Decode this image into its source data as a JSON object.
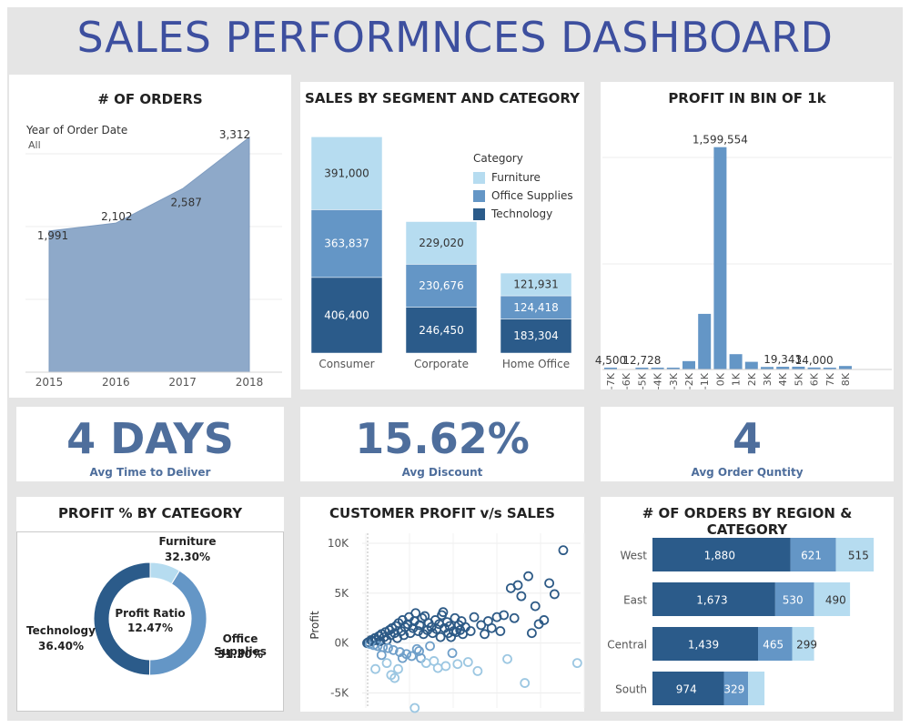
{
  "dashboard_title": "SALES PERFORMNCES DASHBOARD",
  "colors": {
    "furniture": "#b6dcf0",
    "office_supplies": "#6496c6",
    "technology": "#2b5b8a",
    "area": "#8ea9c9",
    "kpi": "#4e6e9c",
    "title": "#3d4f9f"
  },
  "orders": {
    "title": "# OF ORDERS",
    "filter_label": "Year of Order Date",
    "filter_value": "All",
    "chart_data": {
      "type": "area",
      "categories": [
        "2015",
        "2016",
        "2017",
        "2018"
      ],
      "values": [
        1991,
        2102,
        2587,
        3312
      ],
      "value_labels": [
        "1,991",
        "2,102",
        "2,587",
        "3,312"
      ],
      "title": "# OF ORDERS",
      "ylim": [
        0,
        3400
      ]
    }
  },
  "segment": {
    "title": "SALES BY SEGMENT AND CATEGORY",
    "legend_title": "Category",
    "legend": [
      "Furniture",
      "Office Supplies",
      "Technology"
    ],
    "chart_data": {
      "type": "bar",
      "stacked": true,
      "categories": [
        "Consumer",
        "Corporate",
        "Home Office"
      ],
      "series": [
        {
          "name": "Technology",
          "values": [
            406400,
            246450,
            183304
          ],
          "labels": [
            "406,400",
            "246,450",
            "183,304"
          ]
        },
        {
          "name": "Office Supplies",
          "values": [
            363837,
            230676,
            124418
          ],
          "labels": [
            "363,837",
            "230,676",
            "124,418"
          ]
        },
        {
          "name": "Furniture",
          "values": [
            391000,
            229020,
            121931
          ],
          "labels": [
            "391,000",
            "229,020",
            "121,931"
          ]
        }
      ],
      "ylim": [
        0,
        1300000
      ]
    }
  },
  "profit_bins": {
    "title": "PROFIT IN BIN OF 1k",
    "chart_data": {
      "type": "bar",
      "categories": [
        "-7K",
        "-6K",
        "-5K",
        "-4K",
        "-3K",
        "-2K",
        "-1K",
        "0K",
        "1K",
        "2K",
        "3K",
        "4K",
        "5K",
        "6K",
        "7K",
        "8K"
      ],
      "values": [
        4500,
        0,
        12728,
        3000,
        4000,
        60000,
        400000,
        1599554,
        110000,
        55000,
        18000,
        19343,
        20000,
        14000,
        2000,
        25000
      ],
      "data_labels": [
        {
          "category": "-7K",
          "text": "4,500"
        },
        {
          "category": "-5K",
          "text": "12,728"
        },
        {
          "category": "0K",
          "text": "1,599,554"
        },
        {
          "category": "4K",
          "text": "19,343"
        },
        {
          "category": "6K",
          "text": "14,000"
        }
      ],
      "ylim": [
        0,
        1650000
      ]
    }
  },
  "kpis": [
    {
      "value": "4 DAYS",
      "label": "Avg Time to Deliver"
    },
    {
      "value": "15.62%",
      "label": "Avg Discount"
    },
    {
      "value": "4",
      "label": "Avg Order Quntity"
    }
  ],
  "profit_category": {
    "title": "PROFIT % BY CATEGORY",
    "center_title": "Profit Ratio",
    "center_value": "12.47%",
    "chart_data": {
      "type": "pie",
      "donut": true,
      "slices": [
        {
          "name": "Furniture",
          "value": 32.3,
          "label": "32.30%"
        },
        {
          "name": "Office Supplies",
          "value": 31.3,
          "label": "31.30%"
        },
        {
          "name": "Technology",
          "value": 36.4,
          "label": "36.40%"
        }
      ]
    }
  },
  "customer": {
    "title": "CUSTOMER PROFIT v/s SALES",
    "ylabel": "Profit",
    "y_ticks": [
      "10K",
      "5K",
      "0K",
      "-5K"
    ],
    "chart_data": {
      "type": "scatter",
      "ylabel": "Profit",
      "ylim": [
        -6500,
        11000
      ],
      "xlim": [
        0,
        25000
      ],
      "points": [
        [
          150,
          0
        ],
        [
          300,
          100
        ],
        [
          450,
          -80
        ],
        [
          600,
          300
        ],
        [
          750,
          200
        ],
        [
          900,
          -200
        ],
        [
          1050,
          500
        ],
        [
          1200,
          300
        ],
        [
          1350,
          -300
        ],
        [
          1500,
          700
        ],
        [
          1650,
          200
        ],
        [
          1800,
          900
        ],
        [
          1950,
          -400
        ],
        [
          2100,
          600
        ],
        [
          2250,
          1100
        ],
        [
          2400,
          300
        ],
        [
          2550,
          -500
        ],
        [
          2700,
          1300
        ],
        [
          2850,
          800
        ],
        [
          3000,
          1500
        ],
        [
          3150,
          -700
        ],
        [
          3300,
          1000
        ],
        [
          3450,
          1700
        ],
        [
          3600,
          500
        ],
        [
          3750,
          2000
        ],
        [
          3900,
          -900
        ],
        [
          4050,
          1200
        ],
        [
          4200,
          2300
        ],
        [
          4350,
          800
        ],
        [
          4500,
          1600
        ],
        [
          4650,
          -1100
        ],
        [
          4800,
          1900
        ],
        [
          4950,
          2600
        ],
        [
          5100,
          1000
        ],
        [
          5250,
          -1300
        ],
        [
          5400,
          1500
        ],
        [
          5550,
          2200
        ],
        [
          5700,
          3000
        ],
        [
          5850,
          -600
        ],
        [
          6000,
          1200
        ],
        [
          6150,
          1800
        ],
        [
          6300,
          -1500
        ],
        [
          6450,
          2500
        ],
        [
          6600,
          900
        ],
        [
          6750,
          2700
        ],
        [
          6900,
          -2000
        ],
        [
          7050,
          1300
        ],
        [
          7200,
          2000
        ],
        [
          7350,
          -300
        ],
        [
          7500,
          1600
        ],
        [
          7650,
          1000
        ],
        [
          7800,
          -1800
        ],
        [
          7950,
          2300
        ],
        [
          8100,
          1400
        ],
        [
          8250,
          -2500
        ],
        [
          8400,
          1900
        ],
        [
          8550,
          600
        ],
        [
          8700,
          2800
        ],
        [
          8850,
          3100
        ],
        [
          9000,
          1500
        ],
        [
          9150,
          -2300
        ],
        [
          9300,
          2100
        ],
        [
          9450,
          1000
        ],
        [
          9600,
          1700
        ],
        [
          9750,
          600
        ],
        [
          9900,
          -1000
        ],
        [
          10050,
          1200
        ],
        [
          10200,
          2500
        ],
        [
          10350,
          1100
        ],
        [
          10500,
          -2100
        ],
        [
          10650,
          1800
        ],
        [
          10800,
          1300
        ],
        [
          10950,
          2200
        ],
        [
          11100,
          900
        ],
        [
          11400,
          1600
        ],
        [
          11700,
          -1900
        ],
        [
          12000,
          1200
        ],
        [
          12400,
          2600
        ],
        [
          12800,
          -2800
        ],
        [
          13200,
          1800
        ],
        [
          13600,
          900
        ],
        [
          14000,
          2200
        ],
        [
          14400,
          1500
        ],
        [
          15000,
          2600
        ],
        [
          15400,
          1200
        ],
        [
          15800,
          2800
        ],
        [
          16200,
          -1600
        ],
        [
          16600,
          5500
        ],
        [
          17000,
          2500
        ],
        [
          17400,
          5800
        ],
        [
          17800,
          4700
        ],
        [
          18200,
          -4000
        ],
        [
          18600,
          6700
        ],
        [
          19000,
          1000
        ],
        [
          19400,
          3700
        ],
        [
          19800,
          1900
        ],
        [
          20400,
          2300
        ],
        [
          21000,
          6000
        ],
        [
          21600,
          4900
        ],
        [
          22600,
          9300
        ],
        [
          24200,
          -2000
        ],
        [
          1800,
          -1200
        ],
        [
          2400,
          -2000
        ],
        [
          2900,
          -3200
        ],
        [
          3300,
          -3500
        ],
        [
          3700,
          -2600
        ],
        [
          4200,
          -1500
        ],
        [
          5600,
          -6500
        ],
        [
          6100,
          -800
        ],
        [
          1100,
          -2600
        ]
      ]
    }
  },
  "region": {
    "title": "# OF ORDERS BY REGION & CATEGORY",
    "chart_data": {
      "type": "bar",
      "orientation": "horizontal",
      "stacked": true,
      "categories": [
        "West",
        "East",
        "Central",
        "South"
      ],
      "series": [
        {
          "name": "Technology",
          "values": [
            1880,
            1673,
            1439,
            974
          ],
          "labels": [
            "1,880",
            "1,673",
            "1,439",
            "974"
          ]
        },
        {
          "name": "Office Supplies",
          "values": [
            621,
            530,
            465,
            329
          ],
          "labels": [
            "621",
            "530",
            "465",
            "329"
          ]
        },
        {
          "name": "Furniture",
          "values": [
            515,
            490,
            299,
            224
          ],
          "labels": [
            "515",
            "490",
            "299",
            ""
          ]
        }
      ],
      "xlim": [
        0,
        3250
      ]
    }
  }
}
